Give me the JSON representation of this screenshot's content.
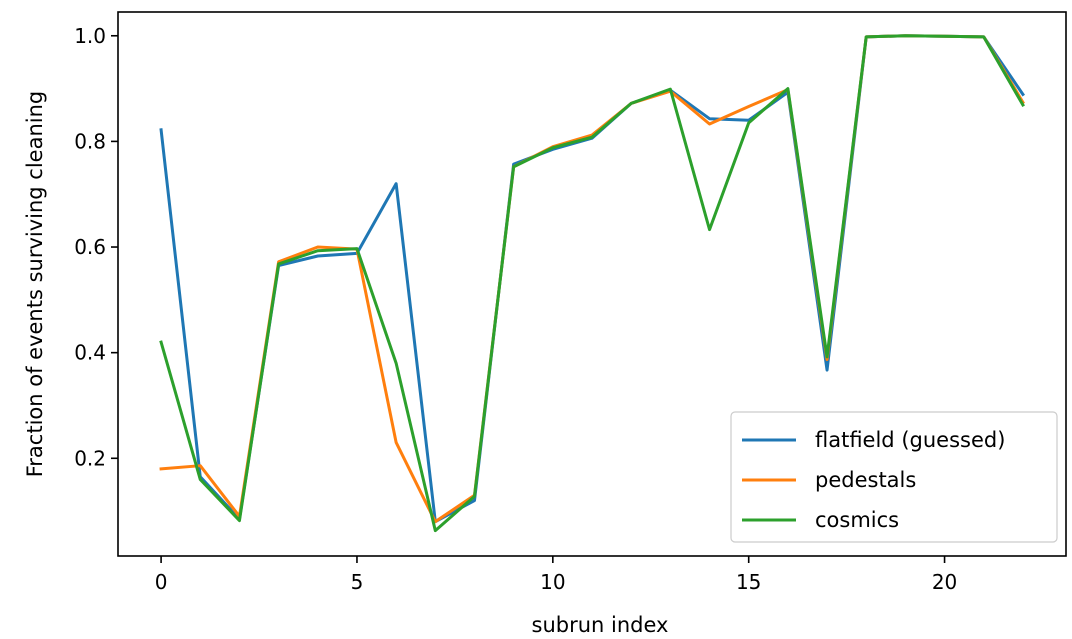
{
  "chart_data": {
    "type": "line",
    "title": "",
    "xlabel": "subrun index",
    "ylabel": "Fraction of events surviving cleaning",
    "xlim": [
      -1.1,
      23.1
    ],
    "ylim": [
      0.015,
      1.045
    ],
    "xticks": [
      0,
      5,
      10,
      15,
      20
    ],
    "yticks": [
      0.2,
      0.4,
      0.6,
      0.8,
      1.0
    ],
    "xtick_labels": [
      "0",
      "5",
      "10",
      "15",
      "20"
    ],
    "ytick_labels": [
      "0.2",
      "0.4",
      "0.6",
      "0.8",
      "1.0"
    ],
    "grid": false,
    "legend_position": "bottom-right",
    "x": [
      0,
      1,
      2,
      3,
      4,
      5,
      6,
      7,
      8,
      9,
      10,
      11,
      12,
      13,
      14,
      15,
      16,
      17,
      18,
      19,
      20,
      21,
      22
    ],
    "series": [
      {
        "name": "flatfield (guessed)",
        "color": "#1f77b4",
        "values": [
          0.822,
          0.165,
          0.085,
          0.565,
          0.583,
          0.588,
          0.72,
          0.08,
          0.12,
          0.757,
          0.785,
          0.806,
          0.872,
          0.897,
          0.843,
          0.84,
          0.893,
          0.367,
          0.998,
          1.0,
          0.999,
          0.998,
          0.889
        ]
      },
      {
        "name": "pedestals",
        "color": "#ff7f0e",
        "values": [
          0.18,
          0.186,
          0.09,
          0.572,
          0.6,
          0.596,
          0.23,
          0.08,
          0.13,
          0.752,
          0.79,
          0.812,
          0.872,
          0.895,
          0.833,
          0.866,
          0.898,
          0.387,
          0.998,
          1.0,
          0.999,
          0.998,
          0.874
        ]
      },
      {
        "name": "cosmics",
        "color": "#2ca02c",
        "values": [
          0.42,
          0.16,
          0.082,
          0.568,
          0.593,
          0.597,
          0.38,
          0.063,
          0.128,
          0.752,
          0.788,
          0.808,
          0.872,
          0.899,
          0.633,
          0.835,
          0.9,
          0.392,
          0.998,
          1.0,
          0.999,
          0.998,
          0.869
        ]
      }
    ]
  }
}
